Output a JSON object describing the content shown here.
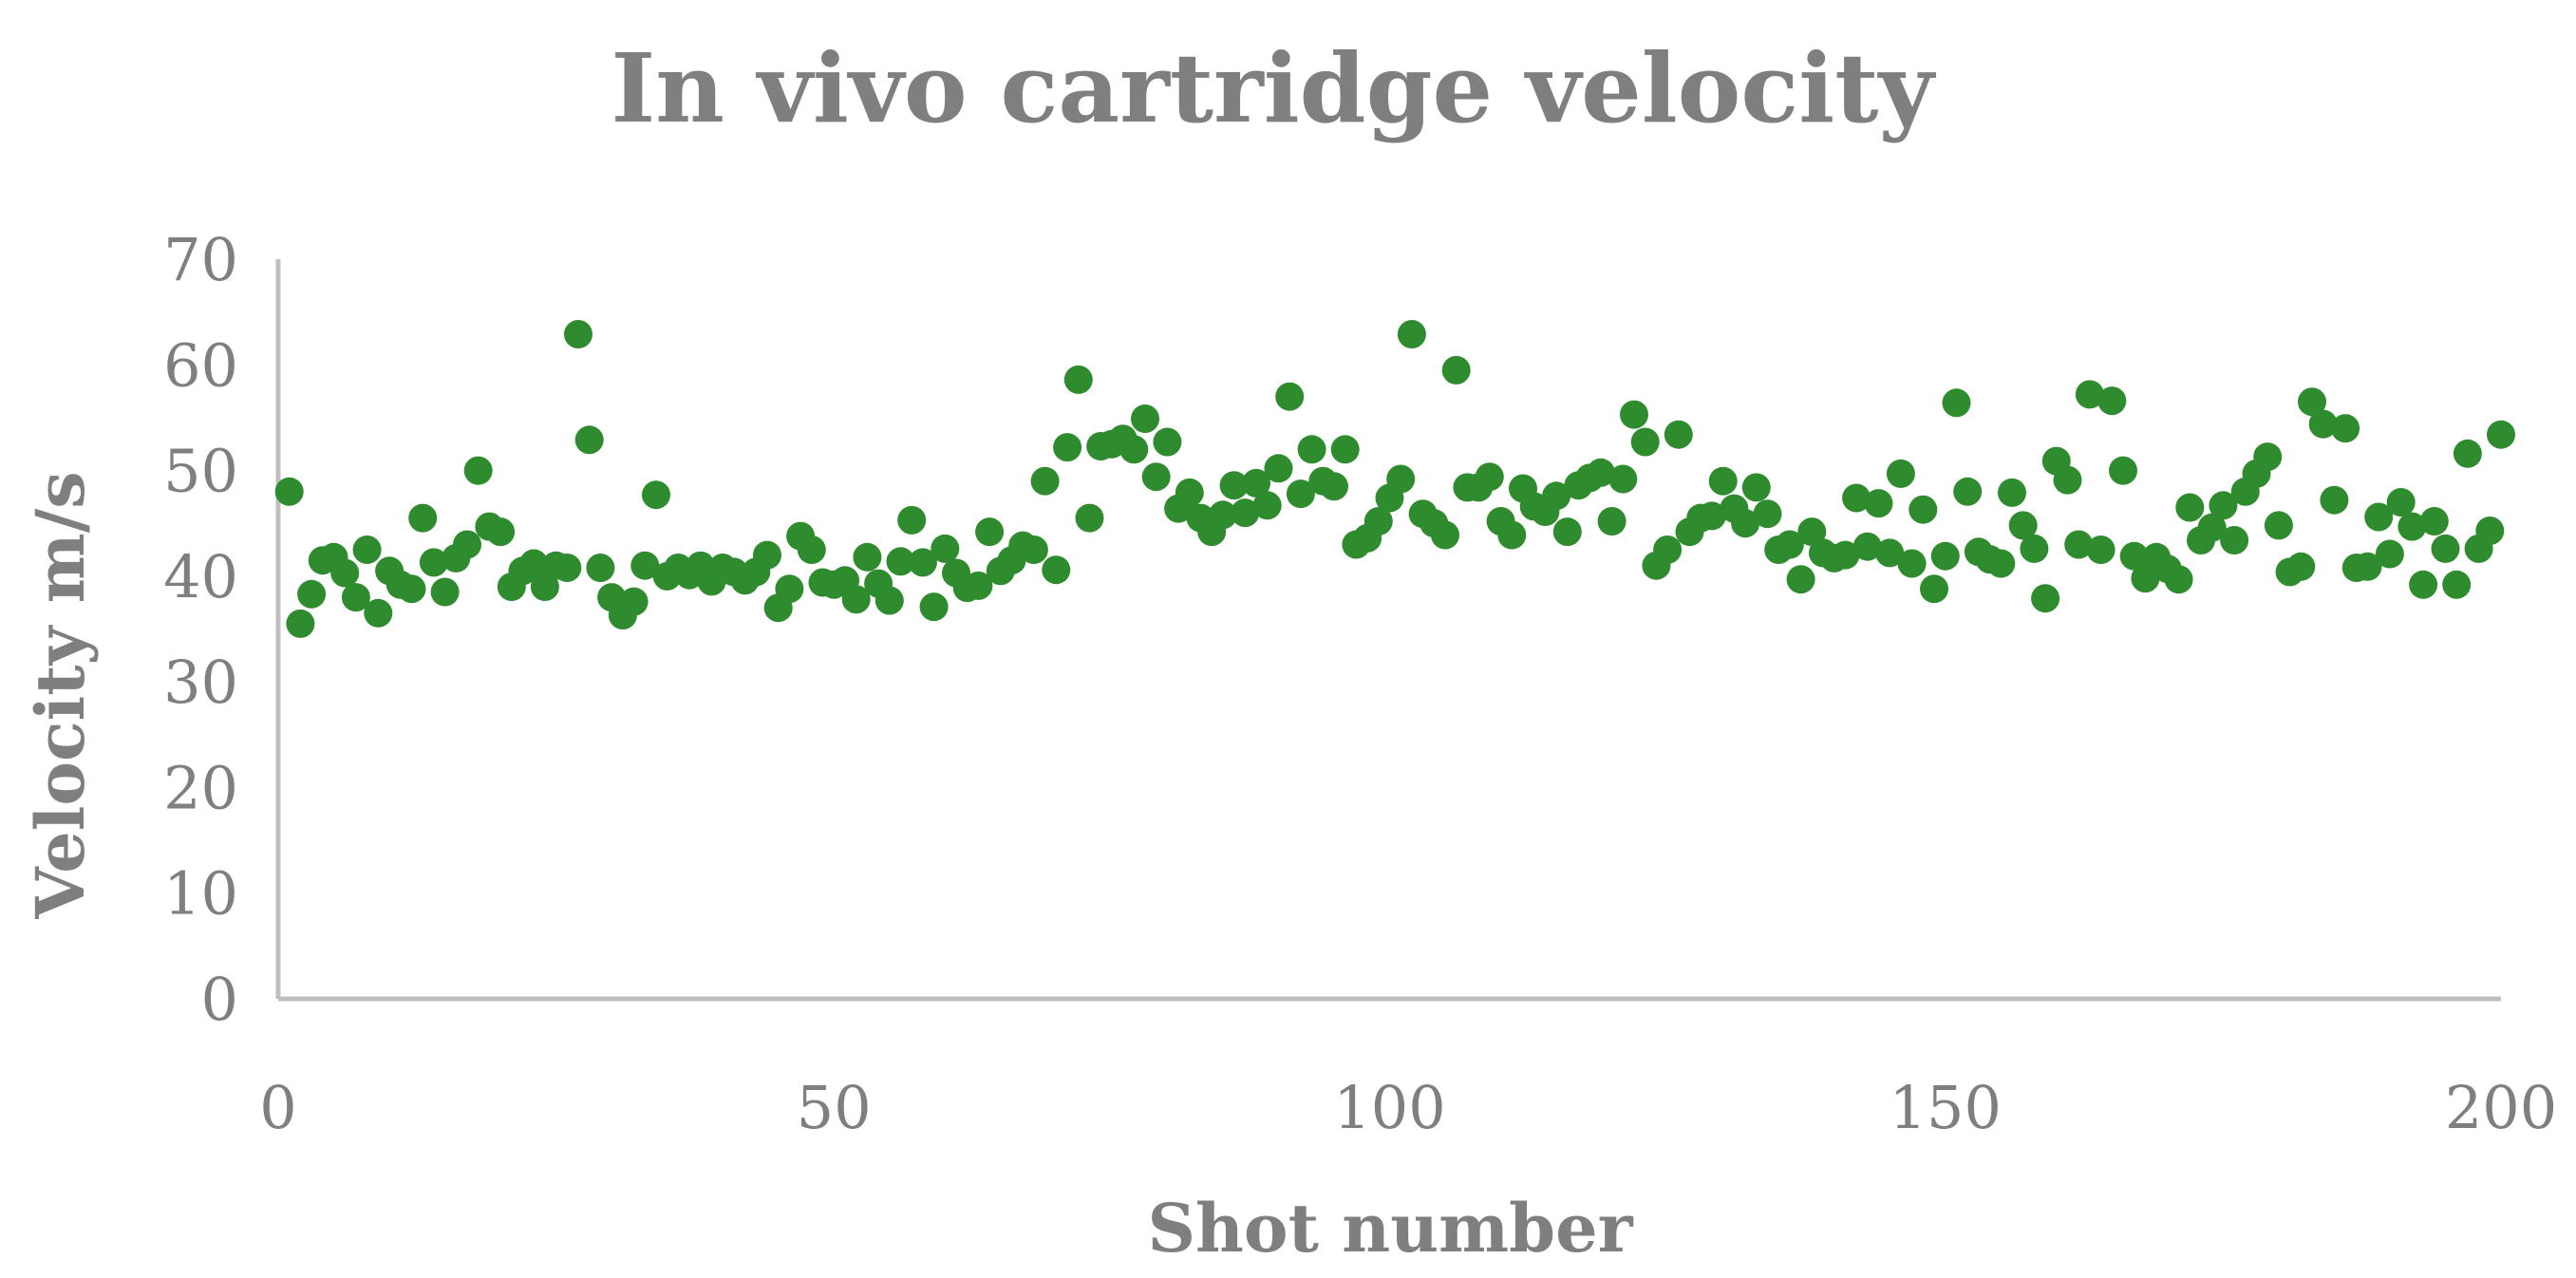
{
  "colors": {
    "marker": "#2e8b2e",
    "text": "#7f7f7f",
    "axis": "#bfbfbf"
  },
  "chart_data": {
    "type": "scatter",
    "title": "In vivo cartridge velocity",
    "xlabel": "Shot number",
    "ylabel": "Velocity m/s",
    "xlim": [
      0,
      200
    ],
    "ylim": [
      0,
      70
    ],
    "xticks": [
      "0",
      "50",
      "100",
      "150",
      "200"
    ],
    "yticks": [
      "0",
      "10",
      "20",
      "30",
      "40",
      "50",
      "60",
      "70"
    ],
    "grid": false,
    "legend": "none",
    "x": [
      1,
      2,
      3,
      4,
      5,
      6,
      7,
      8,
      9,
      10,
      11,
      12,
      13,
      14,
      15,
      16,
      17,
      18,
      19,
      20,
      21,
      22,
      23,
      24,
      25,
      26,
      27,
      28,
      29,
      30,
      31,
      32,
      33,
      34,
      35,
      36,
      37,
      38,
      39,
      40,
      41,
      42,
      43,
      44,
      45,
      46,
      47,
      48,
      49,
      50,
      51,
      52,
      53,
      54,
      55,
      56,
      57,
      58,
      59,
      60,
      61,
      62,
      63,
      64,
      65,
      66,
      67,
      68,
      69,
      70,
      71,
      72,
      73,
      74,
      75,
      76,
      77,
      78,
      79,
      80,
      81,
      82,
      83,
      84,
      85,
      86,
      87,
      88,
      89,
      90,
      91,
      92,
      93,
      94,
      95,
      96,
      97,
      98,
      99,
      100,
      101,
      102,
      103,
      104,
      105,
      106,
      107,
      108,
      109,
      110,
      111,
      112,
      113,
      114,
      115,
      116,
      117,
      118,
      119,
      120,
      121,
      122,
      123,
      124,
      125,
      126,
      127,
      128,
      129,
      130,
      131,
      132,
      133,
      134,
      135,
      136,
      137,
      138,
      139,
      140,
      141,
      142,
      143,
      144,
      145,
      146,
      147,
      148,
      149,
      150,
      151,
      152,
      153,
      154,
      155,
      156,
      157,
      158,
      159,
      160,
      161,
      162,
      163,
      164,
      165,
      166,
      167,
      168,
      169,
      170,
      171,
      172,
      173,
      174,
      175,
      176,
      177,
      178,
      179,
      180,
      181,
      182,
      183,
      184,
      185,
      186,
      187,
      188,
      189,
      190,
      191,
      192,
      193,
      194,
      195,
      196,
      197,
      198,
      199,
      200
    ],
    "y": [
      48,
      35.5,
      38.3,
      41.5,
      41.8,
      40.3,
      38,
      42.5,
      36.5,
      40.5,
      39.2,
      38.8,
      45.5,
      41.3,
      38.5,
      41.7,
      43,
      50,
      44.7,
      44.2,
      39,
      40.5,
      41.2,
      39,
      41,
      40.8,
      62.9,
      52.9,
      40.8,
      38,
      36.3,
      37.6,
      41,
      47.7,
      40,
      40.8,
      40.1,
      41,
      39.5,
      40.8,
      40.4,
      39.6,
      40.4,
      42,
      37,
      38.8,
      43.8,
      42.5,
      39.4,
      39.2,
      39.6,
      37.8,
      41.8,
      39.3,
      37.7,
      41.4,
      45.3,
      41.3,
      37.1,
      42.6,
      40.3,
      38.9,
      39.1,
      44.2,
      40.5,
      41.5,
      42.9,
      42.5,
      49,
      40.6,
      52.2,
      58.6,
      45.5,
      52.3,
      52.5,
      53,
      52,
      54.9,
      49.4,
      52.7,
      46.4,
      47.9,
      45.5,
      44.2,
      45.8,
      48.6,
      46,
      48.8,
      46.7,
      50.2,
      57,
      47.8,
      52,
      49,
      48.5,
      52,
      43,
      43.6,
      45.2,
      47.4,
      49.2,
      62.9,
      45.9,
      45,
      43.9,
      59.5,
      48.4,
      48.4,
      49.4,
      45.2,
      43.9,
      48.3,
      46.6,
      46.1,
      47.6,
      44.2,
      48.6,
      49.3,
      49.8,
      45.2,
      49.2,
      55.3,
      52.7,
      41,
      42.5,
      53.4,
      44.2,
      45.5,
      45.7,
      49,
      46.4,
      45,
      48.4,
      45.9,
      42.5,
      43,
      39.7,
      44.2,
      42.2,
      41.7,
      42,
      47.4,
      42.8,
      46.9,
      42.2,
      49.7,
      41.2,
      46.3,
      38.8,
      41.9,
      56.4,
      48,
      42.3,
      41.6,
      41.2,
      47.9,
      44.8,
      42.6,
      37.9,
      50.9,
      49.1,
      43,
      57.2,
      42.5,
      56.6,
      50,
      41.9,
      39.8,
      41.8,
      40.7,
      39.7,
      46.5,
      43.4,
      44.6,
      46.7,
      43.4,
      48,
      49.7,
      51.3,
      44.8,
      40.4,
      40.9,
      56.5,
      54.4,
      47.2,
      54,
      40.8,
      40.9,
      45.6,
      42.1,
      47,
      44.7,
      39.2,
      45.2,
      42.6,
      39.2,
      51.6,
      42.6,
      44.3,
      53.4
    ]
  }
}
